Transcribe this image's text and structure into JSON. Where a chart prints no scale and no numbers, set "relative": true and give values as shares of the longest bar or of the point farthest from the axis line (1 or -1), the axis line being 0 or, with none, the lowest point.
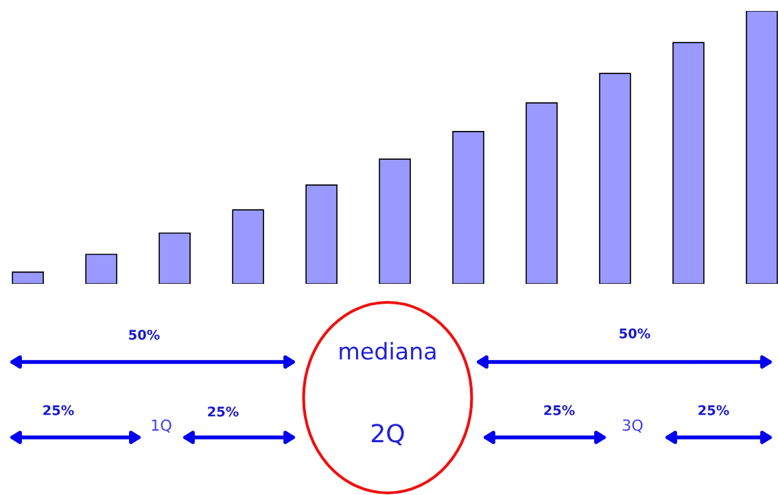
{
  "chart_data": {
    "type": "bar",
    "relative": true,
    "categories": [
      null,
      null,
      null,
      null,
      null,
      null,
      null,
      null,
      null,
      null,
      null
    ],
    "values": [
      0.043,
      0.108,
      0.186,
      0.271,
      0.362,
      0.457,
      0.558,
      0.663,
      0.771,
      0.884,
      1
    ],
    "color": "#9999ff",
    "annotations": [
      "50%",
      "50%",
      "mediana",
      "25%",
      "1Q",
      "25%",
      "2Q",
      "25%",
      "3Q",
      "25%"
    ]
  }
}
